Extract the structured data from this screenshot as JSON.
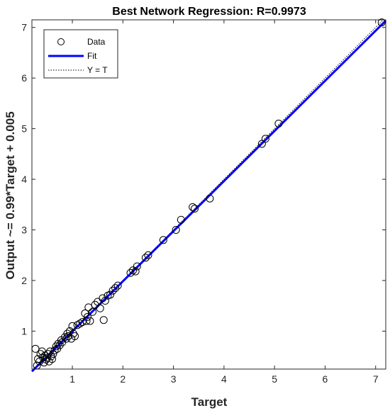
{
  "chart_data": {
    "type": "scatter",
    "title": "Best Network Regression: R=0.9973",
    "xlabel": "Target",
    "ylabel": "Output ~= 0.99*Target + 0.005",
    "xlim": [
      0.2,
      7.2
    ],
    "ylim": [
      0.25,
      7.15
    ],
    "xticks": [
      "1",
      "2",
      "3",
      "4",
      "5",
      "6",
      "7"
    ],
    "yticks": [
      "1",
      "2",
      "3",
      "4",
      "5",
      "6",
      "7"
    ],
    "grid": false,
    "legend_position": "top-left",
    "legend": [
      {
        "label": "Data",
        "style": "circle"
      },
      {
        "label": "Fit",
        "style": "line"
      },
      {
        "label": "Y = T",
        "style": "dotted"
      }
    ],
    "fit": {
      "slope": 0.99,
      "intercept": 0.005,
      "color": "#0000ff"
    },
    "identity_line": {
      "color": "#000000"
    },
    "points": [
      [
        0.27,
        0.65
      ],
      [
        0.3,
        0.32
      ],
      [
        0.32,
        0.45
      ],
      [
        0.35,
        0.4
      ],
      [
        0.37,
        0.55
      ],
      [
        0.4,
        0.6
      ],
      [
        0.42,
        0.48
      ],
      [
        0.44,
        0.38
      ],
      [
        0.46,
        0.52
      ],
      [
        0.48,
        0.44
      ],
      [
        0.5,
        0.47
      ],
      [
        0.52,
        0.55
      ],
      [
        0.54,
        0.4
      ],
      [
        0.56,
        0.6
      ],
      [
        0.58,
        0.5
      ],
      [
        0.6,
        0.45
      ],
      [
        0.62,
        0.55
      ],
      [
        0.65,
        0.62
      ],
      [
        0.68,
        0.7
      ],
      [
        0.7,
        0.65
      ],
      [
        0.72,
        0.75
      ],
      [
        0.75,
        0.72
      ],
      [
        0.78,
        0.82
      ],
      [
        0.8,
        0.78
      ],
      [
        0.85,
        0.88
      ],
      [
        0.88,
        0.85
      ],
      [
        0.9,
        0.95
      ],
      [
        0.92,
        0.9
      ],
      [
        0.95,
        1.0
      ],
      [
        0.98,
        0.85
      ],
      [
        1.0,
        1.1
      ],
      [
        1.02,
        0.95
      ],
      [
        1.05,
        0.9
      ],
      [
        1.1,
        1.12
      ],
      [
        1.15,
        1.15
      ],
      [
        1.2,
        1.18
      ],
      [
        1.25,
        1.35
      ],
      [
        1.28,
        1.2
      ],
      [
        1.3,
        1.28
      ],
      [
        1.32,
        1.47
      ],
      [
        1.35,
        1.2
      ],
      [
        1.4,
        1.38
      ],
      [
        1.45,
        1.52
      ],
      [
        1.5,
        1.58
      ],
      [
        1.55,
        1.45
      ],
      [
        1.6,
        1.65
      ],
      [
        1.62,
        1.22
      ],
      [
        1.65,
        1.6
      ],
      [
        1.7,
        1.7
      ],
      [
        1.75,
        1.72
      ],
      [
        1.8,
        1.8
      ],
      [
        1.85,
        1.85
      ],
      [
        1.9,
        1.9
      ],
      [
        2.15,
        2.15
      ],
      [
        2.2,
        2.2
      ],
      [
        2.25,
        2.18
      ],
      [
        2.28,
        2.28
      ],
      [
        2.45,
        2.45
      ],
      [
        2.5,
        2.5
      ],
      [
        2.8,
        2.8
      ],
      [
        3.05,
        3.0
      ],
      [
        3.15,
        3.2
      ],
      [
        3.38,
        3.45
      ],
      [
        3.42,
        3.42
      ],
      [
        3.72,
        3.62
      ],
      [
        4.75,
        4.7
      ],
      [
        4.82,
        4.8
      ],
      [
        5.08,
        5.1
      ],
      [
        7.12,
        7.1
      ]
    ]
  }
}
